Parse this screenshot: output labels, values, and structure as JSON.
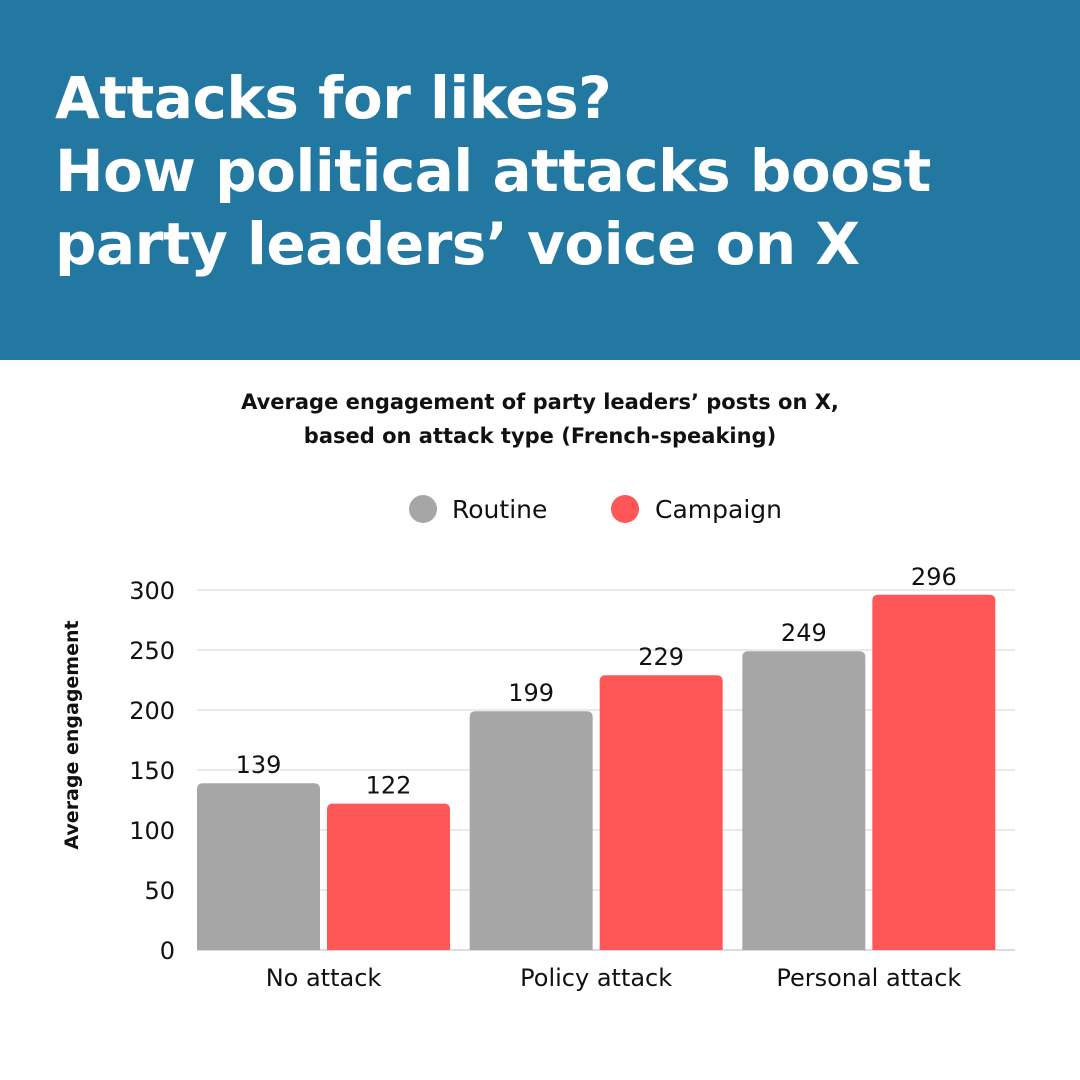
{
  "header": {
    "title_lines": [
      "Attacks for likes?",
      "How political attacks boost",
      "party leaders’ voice on X"
    ],
    "background_color": "#2378a2"
  },
  "chart_data": {
    "type": "bar",
    "title": "Average engagement of party leaders’ posts on X, based on attack type (French-speaking)",
    "title_lines": [
      "Average engagement of party leaders’ posts on X,",
      "based on attack type (French-speaking)"
    ],
    "categories": [
      "No attack",
      "Policy attack",
      "Personal attack"
    ],
    "series": [
      {
        "name": "Routine",
        "color": "#a6a6a6",
        "values": [
          139,
          199,
          249
        ]
      },
      {
        "name": "Campaign",
        "color": "#ff5757",
        "values": [
          122,
          229,
          296
        ]
      }
    ],
    "xlabel": "",
    "ylabel": "Average engagement",
    "ylim": [
      0,
      300
    ],
    "yticks": [
      0,
      50,
      100,
      150,
      200,
      250,
      300
    ],
    "grid": true,
    "legend_position": "top-center",
    "data_labels": true
  }
}
